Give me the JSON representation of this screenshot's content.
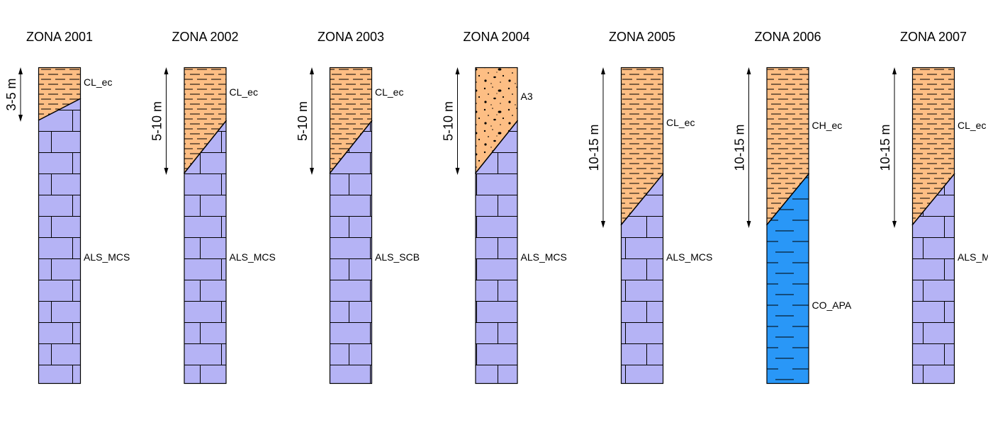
{
  "colors": {
    "clay_fill": "#fdbe84",
    "limestone_fill": "#b5b3f5",
    "water_fill": "#2997f7",
    "line": "#000000"
  },
  "zones": [
    {
      "title": "ZONA 2001",
      "thickness_label": "3-5 m",
      "upper_unit": "CL_ec",
      "lower_unit": "ALS_MCS",
      "upper_pattern": "clay",
      "lower_pattern": "brick"
    },
    {
      "title": "ZONA 2002",
      "thickness_label": "5-10 m",
      "upper_unit": "CL_ec",
      "lower_unit": "ALS_MCS",
      "upper_pattern": "clay",
      "lower_pattern": "brick"
    },
    {
      "title": "ZONA 2003",
      "thickness_label": "5-10 m",
      "upper_unit": "CL_ec",
      "lower_unit": "ALS_SCB",
      "upper_pattern": "clay",
      "lower_pattern": "brick"
    },
    {
      "title": "ZONA 2004",
      "thickness_label": "5-10 m",
      "upper_unit": "A3",
      "lower_unit": "ALS_MCS",
      "upper_pattern": "gravel",
      "lower_pattern": "brick"
    },
    {
      "title": "ZONA 2005",
      "thickness_label": "10-15 m",
      "upper_unit": "CL_ec",
      "lower_unit": "ALS_MCS",
      "upper_pattern": "clay",
      "lower_pattern": "brick"
    },
    {
      "title": "ZONA 2006",
      "thickness_label": "10-15 m",
      "upper_unit": "CH_ec",
      "lower_unit": "CO_APA",
      "upper_pattern": "clay",
      "lower_pattern": "water"
    },
    {
      "title": "ZONA 2007",
      "thickness_label": "10-15 m",
      "upper_unit": "CL_ec",
      "lower_unit": "ALS_MCS",
      "upper_pattern": "clay",
      "lower_pattern": "brick"
    }
  ]
}
